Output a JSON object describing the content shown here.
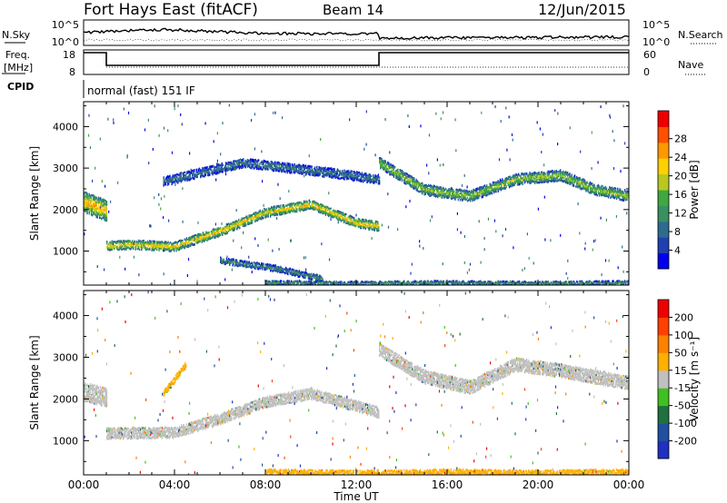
{
  "header": {
    "station": "Fort Hays East (fitACF)",
    "beam": "Beam 14",
    "date": "12/Jun/2015"
  },
  "top_panels": {
    "nsky_label": "N.Sky",
    "nsearch_label": "N.Search",
    "noise_ticks": [
      "10^5",
      "10^0"
    ],
    "freq_label": "Freq.",
    "freq_unit": "[MHz]",
    "freq_ticks": [
      "18",
      "8"
    ],
    "nave_label": "Nave",
    "nave_ticks": [
      "60",
      "0"
    ],
    "cpid_label": "CPID",
    "cpid_text": "normal (fast) 151 IF"
  },
  "chart_data": [
    {
      "type": "heatmap",
      "name": "power",
      "ylabel": "Slant Range [km]",
      "ylim": [
        180,
        4600
      ],
      "yticks": [
        "1000",
        "2000",
        "3000",
        "4000"
      ],
      "xlim": [
        0,
        24
      ],
      "colorbar_label": "Power [dB]",
      "colorbar_ticks": [
        "4",
        "8",
        "12",
        "16",
        "20",
        "24",
        "28"
      ],
      "colors": [
        "#0000ee",
        "#2040b0",
        "#2e6b90",
        "#3a9060",
        "#40a840",
        "#b8c820",
        "#ffd000",
        "#ff9800",
        "#ff5000",
        "#ee0000"
      ],
      "bands": [
        {
          "x": [
            0,
            1.0
          ],
          "y0": 2200,
          "y1": 2000,
          "width": 500,
          "level": 0.75
        },
        {
          "x": [
            1.0,
            2.0,
            4.0,
            6.0,
            8.0,
            10.0,
            12.0,
            13.0
          ],
          "y": [
            1150,
            1180,
            1130,
            1500,
            1950,
            2150,
            1700,
            1620
          ],
          "width": 220,
          "level": 0.7
        },
        {
          "x": [
            13.0,
            15.0,
            17.0,
            19.0,
            21.0,
            22.5,
            24.0
          ],
          "y": [
            3150,
            2500,
            2350,
            2750,
            2850,
            2500,
            2350
          ],
          "width": 260,
          "level": 0.55
        },
        {
          "x": [
            3.5,
            7.0,
            11.0,
            13.0
          ],
          "y": [
            2700,
            3150,
            2900,
            2750
          ],
          "width": 220,
          "level": 0.3
        },
        {
          "x": [
            6.0,
            8.5,
            10.5
          ],
          "y": [
            800,
            600,
            350
          ],
          "width": 150,
          "level": 0.35
        },
        {
          "x": [
            8.0,
            12.0,
            16.0,
            20.0,
            24.0
          ],
          "y": [
            260,
            240,
            260,
            240,
            260
          ],
          "width": 100,
          "level": 0.4
        }
      ]
    },
    {
      "type": "heatmap",
      "name": "velocity",
      "ylabel": "Slant Range [km]",
      "xlabel": "Time UT",
      "ylim": [
        180,
        4600
      ],
      "yticks": [
        "1000",
        "2000",
        "3000",
        "4000"
      ],
      "xlim": [
        0,
        24
      ],
      "xticks": [
        "00:00",
        "04:00",
        "08:00",
        "12:00",
        "16:00",
        "20:00",
        "00:00"
      ],
      "colorbar_label": "Velocity [m s⁻¹]",
      "colorbar_ticks": [
        "200",
        "100",
        "50",
        "15",
        "-15",
        "-50",
        "-100",
        "-200"
      ],
      "colors": [
        "#2030c0",
        "#2050a0",
        "#207040",
        "#40c020",
        "#c0c0c0",
        "#ffb000",
        "#ff8000",
        "#ff4000",
        "#ee0000"
      ],
      "bands": [
        {
          "x": [
            0,
            1.0
          ],
          "y0": 2200,
          "y1": 2050,
          "width": 450,
          "level": 0.47
        },
        {
          "x": [
            1.0,
            2.0,
            4.0,
            6.0,
            8.0,
            10.0,
            12.0,
            13.0
          ],
          "y": [
            1200,
            1200,
            1220,
            1550,
            1950,
            2150,
            1850,
            1700
          ],
          "width": 260,
          "level": 0.47
        },
        {
          "x": [
            13.0,
            15.0,
            17.0,
            19.0,
            21.0,
            22.5,
            24.0
          ],
          "y": [
            3200,
            2550,
            2300,
            2850,
            2700,
            2550,
            2400
          ],
          "width": 320,
          "level": 0.47
        },
        {
          "x": [
            3.5,
            4.5
          ],
          "y": [
            2150,
            2850
          ],
          "width": 150,
          "level": 0.62
        },
        {
          "x": [
            8.0,
            12.0,
            16.0,
            20.0,
            24.0
          ],
          "y": [
            280,
            250,
            280,
            250,
            280
          ],
          "width": 120,
          "level": 0.62
        }
      ]
    }
  ]
}
